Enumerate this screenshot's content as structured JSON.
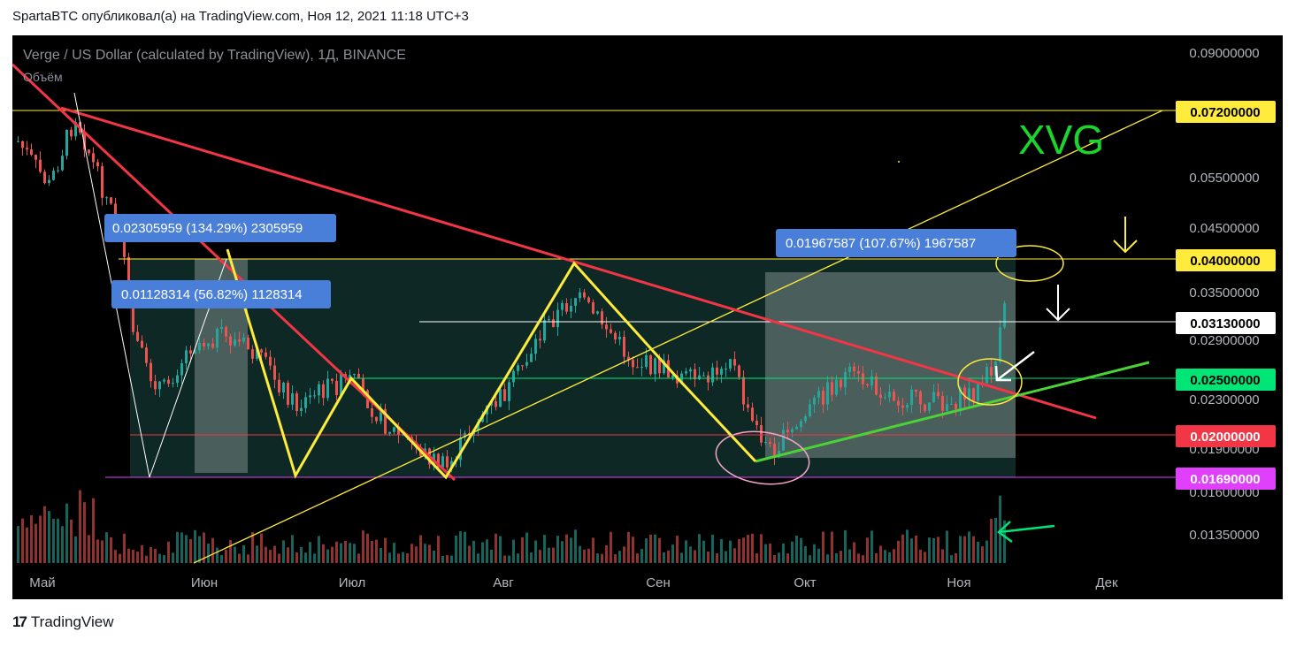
{
  "header": {
    "published": "SpartaBTC опубликовал(а) на TradingView.com, Ноя 12, 2021 11:18 UTC+3"
  },
  "chart_data": {
    "type": "candlestick",
    "symbol_title": "Verge / US Dollar (calculated by TradingView), 1Д, BINANCE",
    "volume_label": "Объём",
    "watermark": "XVG",
    "x_ticks": [
      "Май",
      "Июн",
      "Июл",
      "Авг",
      "Сен",
      "Окт",
      "Ноя",
      "Дек"
    ],
    "y_ticks": [
      "0.09000000",
      "0.05500000",
      "0.04500000",
      "0.03500000",
      "0.02900000",
      "0.02300000",
      "0.01900000",
      "0.01600000",
      "0.01350000"
    ],
    "y_scale": "log",
    "levels": [
      {
        "label": "0.07200000",
        "value": 0.072,
        "color": "#ffeb3b",
        "text_color": "#000000"
      },
      {
        "label": "0.04000000",
        "value": 0.04,
        "color": "#ffeb3b",
        "text_color": "#000000"
      },
      {
        "label": "0.03130000",
        "value": 0.0313,
        "color": "#ffffff",
        "text_color": "#000000"
      },
      {
        "label": "0.02500000",
        "value": 0.025,
        "color": "#00e676",
        "text_color": "#000000"
      },
      {
        "label": "0.02000000",
        "value": 0.02,
        "color": "#f23645",
        "text_color": "#ffffff"
      },
      {
        "label": "0.01690000",
        "value": 0.0169,
        "color": "#e040fb",
        "text_color": "#ffffff"
      }
    ],
    "measurements": [
      {
        "text": "0.02305959 (134.29%) 2305959"
      },
      {
        "text": "0.01128314 (56.82%) 1128314"
      },
      {
        "text": "0.01967587 (107.67%) 1967587"
      }
    ],
    "colors": {
      "up": "#26a69a",
      "down": "#ef5350",
      "background": "#000000"
    }
  },
  "footer": {
    "brand": "TradingView",
    "logo_mark": "17"
  }
}
